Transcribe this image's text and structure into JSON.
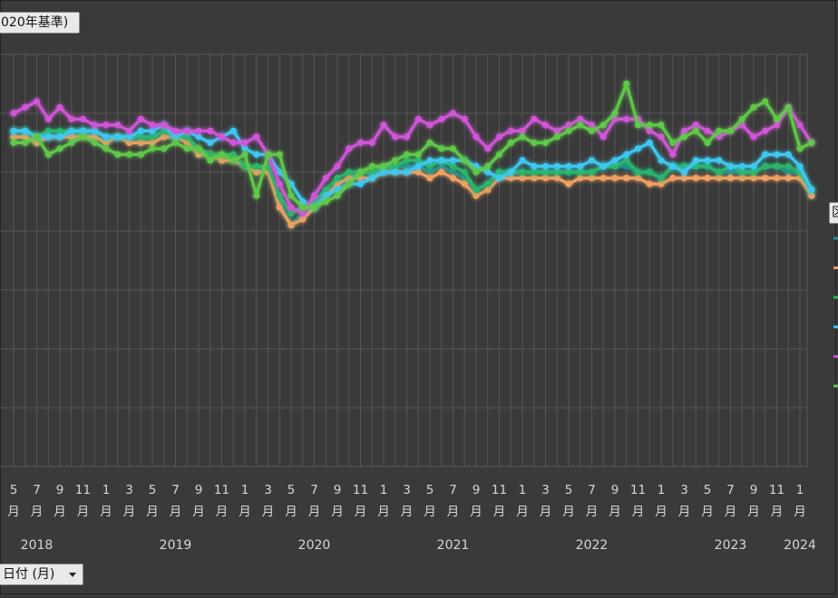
{
  "filters": {
    "top_field": "020年基準)",
    "date_field": "日付 (月)",
    "legend_title": "区"
  },
  "colors": {
    "background": "#3a3a3a",
    "grid": "#555555"
  },
  "chart_data": {
    "type": "line",
    "title": "",
    "xlabel": "",
    "ylabel": "",
    "grid": true,
    "legend_position": "right",
    "x_tick_labels": [
      "5月",
      "7月",
      "9月",
      "11月",
      "1月",
      "3月",
      "5月",
      "7月",
      "9月",
      "11月",
      "1月",
      "3月",
      "5月",
      "7月",
      "9月",
      "11月",
      "1月",
      "3月",
      "5月",
      "7月",
      "9月",
      "11月",
      "1月",
      "3月",
      "5月",
      "7月",
      "9月",
      "11月",
      "1月",
      "3月",
      "5月",
      "7月",
      "9月",
      "11月",
      "1月"
    ],
    "x_year_labels": [
      "2018",
      "2019",
      "2020",
      "2021",
      "2022",
      "2023",
      "2024"
    ],
    "x_year_months": [
      "2018-07",
      "2019-07",
      "2020-07",
      "2021-07",
      "2022-07",
      "2023-07",
      "2024-01"
    ],
    "x_start": "2018-05",
    "x_end": "2024-01",
    "ylim": [
      0,
      7
    ],
    "series": [
      {
        "color": "#1f8f8f",
        "values": [
          5.6,
          5.6,
          5.5,
          5.6,
          5.6,
          5.6,
          5.7,
          5.6,
          5.5,
          5.6,
          5.6,
          5.5,
          5.6,
          5.6,
          5.6,
          5.6,
          5.3,
          5.3,
          5.2,
          5.2,
          5.1,
          5.0,
          5.1,
          4.5,
          4.1,
          4.3,
          4.4,
          4.6,
          4.8,
          4.9,
          5.0,
          5.0,
          5.0,
          5.1,
          5.1,
          5.1,
          5.0,
          5.1,
          5.0,
          4.9,
          4.7,
          4.8,
          5.0,
          5.0,
          5.0,
          5.0,
          5.0,
          5.0,
          5.0,
          5.0,
          5.0,
          5.1,
          5.1,
          5.1,
          5.0,
          5.0,
          4.9,
          5.1,
          5.1,
          5.1,
          5.1,
          5.0,
          5.0,
          5.0,
          5.0,
          5.1,
          5.1,
          5.0,
          5.0,
          4.6
        ]
      },
      {
        "color": "#f0a060",
        "values": [
          5.6,
          5.6,
          5.5,
          5.6,
          5.6,
          5.6,
          5.6,
          5.6,
          5.5,
          5.6,
          5.5,
          5.5,
          5.5,
          5.6,
          5.6,
          5.5,
          5.3,
          5.3,
          5.2,
          5.2,
          5.1,
          5.0,
          5.0,
          4.4,
          4.1,
          4.2,
          4.4,
          4.6,
          4.8,
          4.9,
          4.9,
          4.9,
          5.0,
          5.0,
          5.0,
          5.0,
          4.9,
          5.0,
          4.9,
          4.8,
          4.6,
          4.7,
          4.9,
          4.9,
          4.9,
          4.9,
          4.9,
          4.9,
          4.8,
          4.9,
          4.9,
          4.9,
          4.9,
          4.9,
          4.9,
          4.8,
          4.8,
          4.9,
          4.9,
          4.9,
          4.9,
          4.9,
          4.9,
          4.9,
          4.9,
          4.9,
          4.9,
          4.9,
          4.9,
          4.6
        ]
      },
      {
        "color": "#2bb56a",
        "values": [
          5.7,
          5.7,
          5.6,
          5.7,
          5.7,
          5.7,
          5.7,
          5.7,
          5.6,
          5.6,
          5.6,
          5.6,
          5.6,
          5.7,
          5.6,
          5.6,
          5.4,
          5.3,
          5.3,
          5.3,
          5.1,
          5.1,
          5.1,
          4.6,
          4.3,
          4.4,
          4.5,
          4.7,
          4.9,
          5.0,
          5.0,
          5.0,
          5.1,
          5.1,
          5.2,
          5.2,
          5.1,
          5.2,
          5.1,
          5.0,
          4.7,
          4.8,
          5.0,
          5.0,
          5.0,
          5.0,
          5.0,
          5.0,
          5.0,
          5.0,
          5.0,
          5.1,
          5.1,
          5.2,
          5.0,
          5.0,
          4.9,
          5.1,
          5.1,
          5.1,
          5.1,
          5.0,
          5.1,
          5.0,
          5.0,
          5.1,
          5.1,
          5.1,
          5.0,
          4.7
        ]
      },
      {
        "color": "#3ec8f2",
        "values": [
          5.7,
          5.7,
          5.6,
          5.6,
          5.6,
          5.7,
          5.7,
          5.7,
          5.6,
          5.6,
          5.6,
          5.7,
          5.7,
          5.8,
          5.6,
          5.7,
          5.6,
          5.5,
          5.6,
          5.7,
          5.4,
          5.3,
          5.3,
          5.0,
          4.8,
          4.5,
          4.4,
          4.6,
          4.7,
          4.8,
          4.8,
          4.9,
          5.0,
          5.0,
          5.0,
          5.1,
          5.2,
          5.2,
          5.2,
          5.2,
          5.1,
          5.0,
          4.9,
          5.0,
          5.2,
          5.1,
          5.1,
          5.1,
          5.1,
          5.1,
          5.2,
          5.1,
          5.2,
          5.3,
          5.4,
          5.5,
          5.2,
          5.1,
          5.0,
          5.2,
          5.2,
          5.2,
          5.1,
          5.1,
          5.1,
          5.3,
          5.3,
          5.3,
          5.1,
          4.7
        ]
      },
      {
        "color": "#d055d8",
        "values": [
          6.0,
          6.1,
          6.2,
          5.9,
          6.1,
          5.9,
          5.9,
          5.8,
          5.8,
          5.8,
          5.7,
          5.9,
          5.8,
          5.8,
          5.7,
          5.7,
          5.7,
          5.7,
          5.6,
          5.5,
          5.5,
          5.6,
          5.3,
          4.8,
          4.4,
          4.3,
          4.6,
          4.9,
          5.1,
          5.4,
          5.5,
          5.5,
          5.8,
          5.6,
          5.6,
          5.9,
          5.8,
          5.9,
          6.0,
          5.9,
          5.6,
          5.4,
          5.6,
          5.7,
          5.7,
          5.9,
          5.8,
          5.7,
          5.8,
          5.9,
          5.8,
          5.6,
          5.9,
          5.9,
          5.9,
          5.7,
          5.6,
          5.3,
          5.7,
          5.8,
          5.7,
          5.6,
          5.7,
          5.8,
          5.6,
          5.7,
          5.8,
          6.1,
          5.8,
          5.5
        ]
      },
      {
        "color": "#5ec84a",
        "values": [
          5.5,
          5.5,
          5.6,
          5.3,
          5.4,
          5.5,
          5.6,
          5.5,
          5.4,
          5.3,
          5.3,
          5.3,
          5.4,
          5.4,
          5.5,
          5.4,
          5.4,
          5.2,
          5.3,
          5.2,
          5.3,
          4.6,
          5.3,
          5.3,
          4.6,
          4.4,
          4.4,
          4.5,
          4.6,
          4.8,
          5.0,
          5.1,
          5.1,
          5.2,
          5.3,
          5.3,
          5.5,
          5.4,
          5.4,
          5.2,
          5.0,
          5.1,
          5.3,
          5.5,
          5.6,
          5.5,
          5.5,
          5.6,
          5.7,
          5.8,
          5.7,
          5.8,
          6.0,
          6.5,
          5.8,
          5.8,
          5.8,
          5.5,
          5.6,
          5.7,
          5.5,
          5.7,
          5.7,
          5.9,
          6.1,
          6.2,
          5.9,
          6.1,
          5.4,
          5.5
        ]
      }
    ]
  }
}
